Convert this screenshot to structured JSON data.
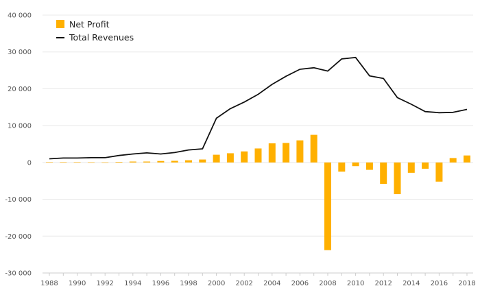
{
  "chart_data": {
    "type": "bar",
    "title": "",
    "xlabel": "",
    "ylabel": "",
    "ylim": [
      -30000,
      40000
    ],
    "y_ticks": [
      40000,
      30000,
      20000,
      10000,
      0,
      -10000,
      -20000,
      -30000
    ],
    "y_tick_labels": [
      "40 000",
      "30 000",
      "20 000",
      "10 000",
      "0",
      "-10 000",
      "-20 000",
      "-30 000"
    ],
    "x_tick_labels": [
      "1988",
      "1990",
      "1992",
      "1994",
      "1996",
      "1998",
      "2000",
      "2002",
      "2004",
      "2006",
      "2008",
      "2010",
      "2012",
      "2014",
      "2016",
      "2018"
    ],
    "categories": [
      1988,
      1989,
      1990,
      1991,
      1992,
      1993,
      1994,
      1995,
      1996,
      1997,
      1998,
      1999,
      2000,
      2001,
      2002,
      2003,
      2004,
      2005,
      2006,
      2007,
      2008,
      2009,
      2010,
      2011,
      2012,
      2013,
      2014,
      2015,
      2016,
      2017,
      2018
    ],
    "grid": true,
    "legend_position": "top-left",
    "series": [
      {
        "name": "Net Profit",
        "type": "bar",
        "color": "#ffb000",
        "values": [
          100,
          100,
          100,
          50,
          20,
          150,
          250,
          250,
          400,
          450,
          600,
          800,
          2100,
          2500,
          3000,
          3800,
          5200,
          5300,
          6000,
          7500,
          -23800,
          -2500,
          -1000,
          -2000,
          -5800,
          -8600,
          -2800,
          -1700,
          -5200,
          1200,
          1900
        ]
      },
      {
        "name": "Total Revenues",
        "type": "line",
        "color": "#111111",
        "values": [
          1000,
          1200,
          1200,
          1300,
          1300,
          1900,
          2300,
          2600,
          2300,
          2700,
          3400,
          3700,
          12000,
          14600,
          16400,
          18500,
          21200,
          23400,
          25300,
          25700,
          24800,
          28100,
          28500,
          23500,
          22800,
          17600,
          15800,
          13800,
          13500,
          13600,
          14400
        ]
      }
    ]
  }
}
